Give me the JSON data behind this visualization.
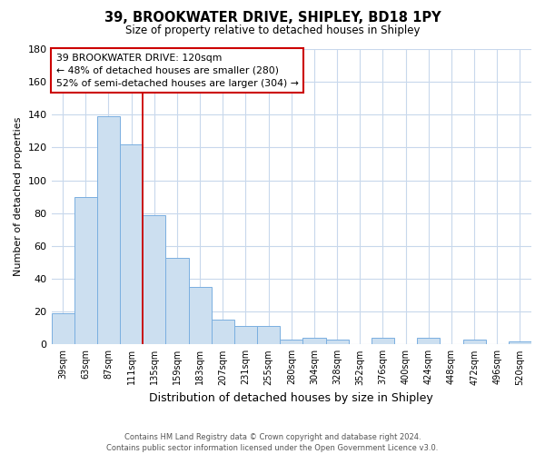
{
  "title": "39, BROOKWATER DRIVE, SHIPLEY, BD18 1PY",
  "subtitle": "Size of property relative to detached houses in Shipley",
  "xlabel": "Distribution of detached houses by size in Shipley",
  "ylabel": "Number of detached properties",
  "bar_labels": [
    "39sqm",
    "63sqm",
    "87sqm",
    "111sqm",
    "135sqm",
    "159sqm",
    "183sqm",
    "207sqm",
    "231sqm",
    "255sqm",
    "280sqm",
    "304sqm",
    "328sqm",
    "352sqm",
    "376sqm",
    "400sqm",
    "424sqm",
    "448sqm",
    "472sqm",
    "496sqm",
    "520sqm"
  ],
  "bar_values": [
    19,
    90,
    139,
    122,
    79,
    53,
    35,
    15,
    11,
    11,
    3,
    4,
    3,
    0,
    4,
    0,
    4,
    0,
    3,
    0,
    2
  ],
  "bar_color": "#ccdff0",
  "bar_edge_color": "#7aafe0",
  "ylim": [
    0,
    180
  ],
  "yticks": [
    0,
    20,
    40,
    60,
    80,
    100,
    120,
    140,
    160,
    180
  ],
  "reference_line_color": "#cc0000",
  "annotation_text": "39 BROOKWATER DRIVE: 120sqm\n← 48% of detached houses are smaller (280)\n52% of semi-detached houses are larger (304) →",
  "annotation_box_color": "#ffffff",
  "annotation_box_edge": "#cc0000",
  "footer_line1": "Contains HM Land Registry data © Crown copyright and database right 2024.",
  "footer_line2": "Contains public sector information licensed under the Open Government Licence v3.0.",
  "bg_color": "#ffffff",
  "grid_color": "#c8d8ec"
}
